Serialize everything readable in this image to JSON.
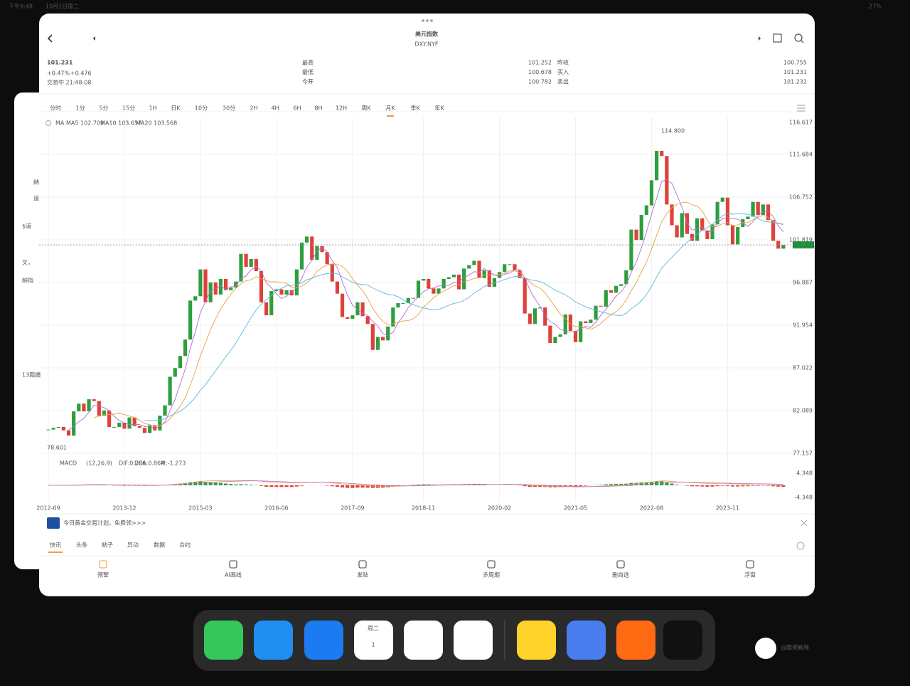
{
  "status_bar": {
    "time": "下午9:48",
    "date": "10月1日周二",
    "battery": "27%"
  },
  "header": {
    "title": "美元指数",
    "code": "DXY.NYF"
  },
  "quote": {
    "price": "101.231",
    "change_pct": "+0.47%",
    "change": "+0.476",
    "status": "交易中 21:48:08"
  },
  "stats": {
    "labels": [
      "最高",
      "最低",
      "今开",
      "昨收",
      "买入",
      "卖出"
    ],
    "values": [
      "101.252",
      "100.678",
      "100.782",
      "100.755",
      "101.231",
      "101.232"
    ]
  },
  "tabs": [
    "分时",
    "1分",
    "5分",
    "15分",
    "1H",
    "日K",
    "10分",
    "30分",
    "2H",
    "4H",
    "6H",
    "8H",
    "12H",
    "周K",
    "月K",
    "季K",
    "年K"
  ],
  "chart_data": {
    "type": "candlestick",
    "categories": [
      "2012-09",
      null,
      null,
      null,
      null,
      null,
      null,
      null,
      null,
      null,
      null,
      null,
      null,
      null,
      null,
      "2013-12",
      null,
      null,
      null,
      null,
      null,
      null,
      null,
      null,
      null,
      null,
      null,
      null,
      null,
      null,
      "2015-03",
      null,
      null,
      null,
      null,
      null,
      null,
      null,
      null,
      null,
      null,
      null,
      null,
      null,
      null,
      "2016-06",
      null,
      null,
      null,
      null,
      null,
      null,
      null,
      null,
      null,
      null,
      null,
      null,
      null,
      null,
      "2017-09",
      null,
      null,
      null,
      null,
      null,
      null,
      null,
      null,
      null,
      null,
      null,
      null,
      null,
      "2018-11",
      null,
      null,
      null,
      null,
      null,
      null,
      null,
      null,
      null,
      null,
      null,
      null,
      null,
      null,
      "2020-02",
      null,
      null,
      null,
      null,
      null,
      null,
      null,
      null,
      null,
      null,
      null,
      null,
      null,
      null,
      "2021-05",
      null,
      null,
      null,
      null,
      null,
      null,
      null,
      null,
      null,
      null,
      null,
      null,
      null,
      null,
      "2022-08",
      null,
      null,
      null,
      null,
      null,
      null,
      null,
      null,
      null,
      null,
      null,
      null,
      null,
      null,
      "2023-11",
      null,
      null,
      null,
      null,
      null,
      null,
      null,
      null,
      null,
      null,
      null
    ],
    "values": [
      79.9,
      80.1,
      80.2,
      79.8,
      79.2,
      82.0,
      82.9,
      82.0,
      83.4,
      83.2,
      81.5,
      82.1,
      80.2,
      80.2,
      80.7,
      80.0,
      81.3,
      80.3,
      80.1,
      79.5,
      80.4,
      79.8,
      81.5,
      82.7,
      86.0,
      87.0,
      88.4,
      90.3,
      94.8,
      95.3,
      98.4,
      94.6,
      96.9,
      95.5,
      97.3,
      96.0,
      96.3,
      97.0,
      100.2,
      98.7,
      99.6,
      98.2,
      94.6,
      93.1,
      95.9,
      96.1,
      95.5,
      96.0,
      95.4,
      98.4,
      101.5,
      102.2,
      99.5,
      101.1,
      100.4,
      99.0,
      97.0,
      95.6,
      92.9,
      92.7,
      93.1,
      94.6,
      93.0,
      92.1,
      89.1,
      90.6,
      90.2,
      91.8,
      94.0,
      94.5,
      94.5,
      95.1,
      95.1,
      97.1,
      97.3,
      96.2,
      95.6,
      96.2,
      97.3,
      97.5,
      97.8,
      96.1,
      98.5,
      98.9,
      99.4,
      97.4,
      98.3,
      96.4,
      97.4,
      98.1,
      99.0,
      99.0,
      98.3,
      97.4,
      93.3,
      92.1,
      93.9,
      94.0,
      91.9,
      89.9,
      90.6,
      90.9,
      93.2,
      91.3,
      90.0,
      92.4,
      92.2,
      92.6,
      94.2,
      94.1,
      96.0,
      95.7,
      96.5,
      96.7,
      98.3,
      103.0,
      101.8,
      104.7,
      105.8,
      108.7,
      112.1,
      111.5,
      105.9,
      103.5,
      102.1,
      104.9,
      102.5,
      101.7,
      104.3,
      102.9,
      101.9,
      103.6,
      106.2,
      106.7,
      103.5,
      101.3,
      103.3,
      104.2,
      104.5,
      106.2,
      104.7,
      105.9,
      104.1,
      101.7,
      100.8,
      101.231
    ],
    "up_color": "#2e9e3e",
    "down_color": "#e0403a",
    "ylim": [
      77.157,
      116.617
    ],
    "yticks": [
      116.617,
      111.684,
      106.752,
      101.819,
      96.887,
      91.954,
      87.022,
      82.089,
      77.157
    ],
    "grid": true,
    "ma_legend": [
      "MA",
      "MA5 102.709",
      "MA10 103.657",
      "MA20 103.568"
    ],
    "ma_colors": [
      "#b36bd1",
      "#e8a040",
      "#5bb8d9"
    ],
    "annotations": [
      "114.800",
      "78.601"
    ]
  },
  "macd": {
    "legend": [
      "MACD",
      "(12,26,9)",
      "DIF:0.236",
      "DEA:0.864",
      "M:-1.273"
    ],
    "ylim": [
      -4.348,
      4.348
    ],
    "yticks": [
      {
        "value": 4.348,
        "label": "4.348"
      },
      {
        "value": -4.348,
        "label": "-4.348"
      }
    ]
  },
  "banner": {
    "text": "今日黄金交易计划，免费领>>>"
  },
  "news_tabs": [
    "快讯",
    "头条",
    "粘子",
    "异动",
    "数据",
    "合约"
  ],
  "toolbar": [
    "预警",
    "AI画线",
    "发贴",
    "多周期",
    "删自选",
    "浮窗"
  ],
  "dock": {
    "calendar_day": "周二",
    "calendar_date": "1"
  },
  "background_app": [
    "納",
    "道",
    "$道",
    "叉，",
    "納指",
    "13閱讀"
  ],
  "watermark": "@醒覺戰場"
}
